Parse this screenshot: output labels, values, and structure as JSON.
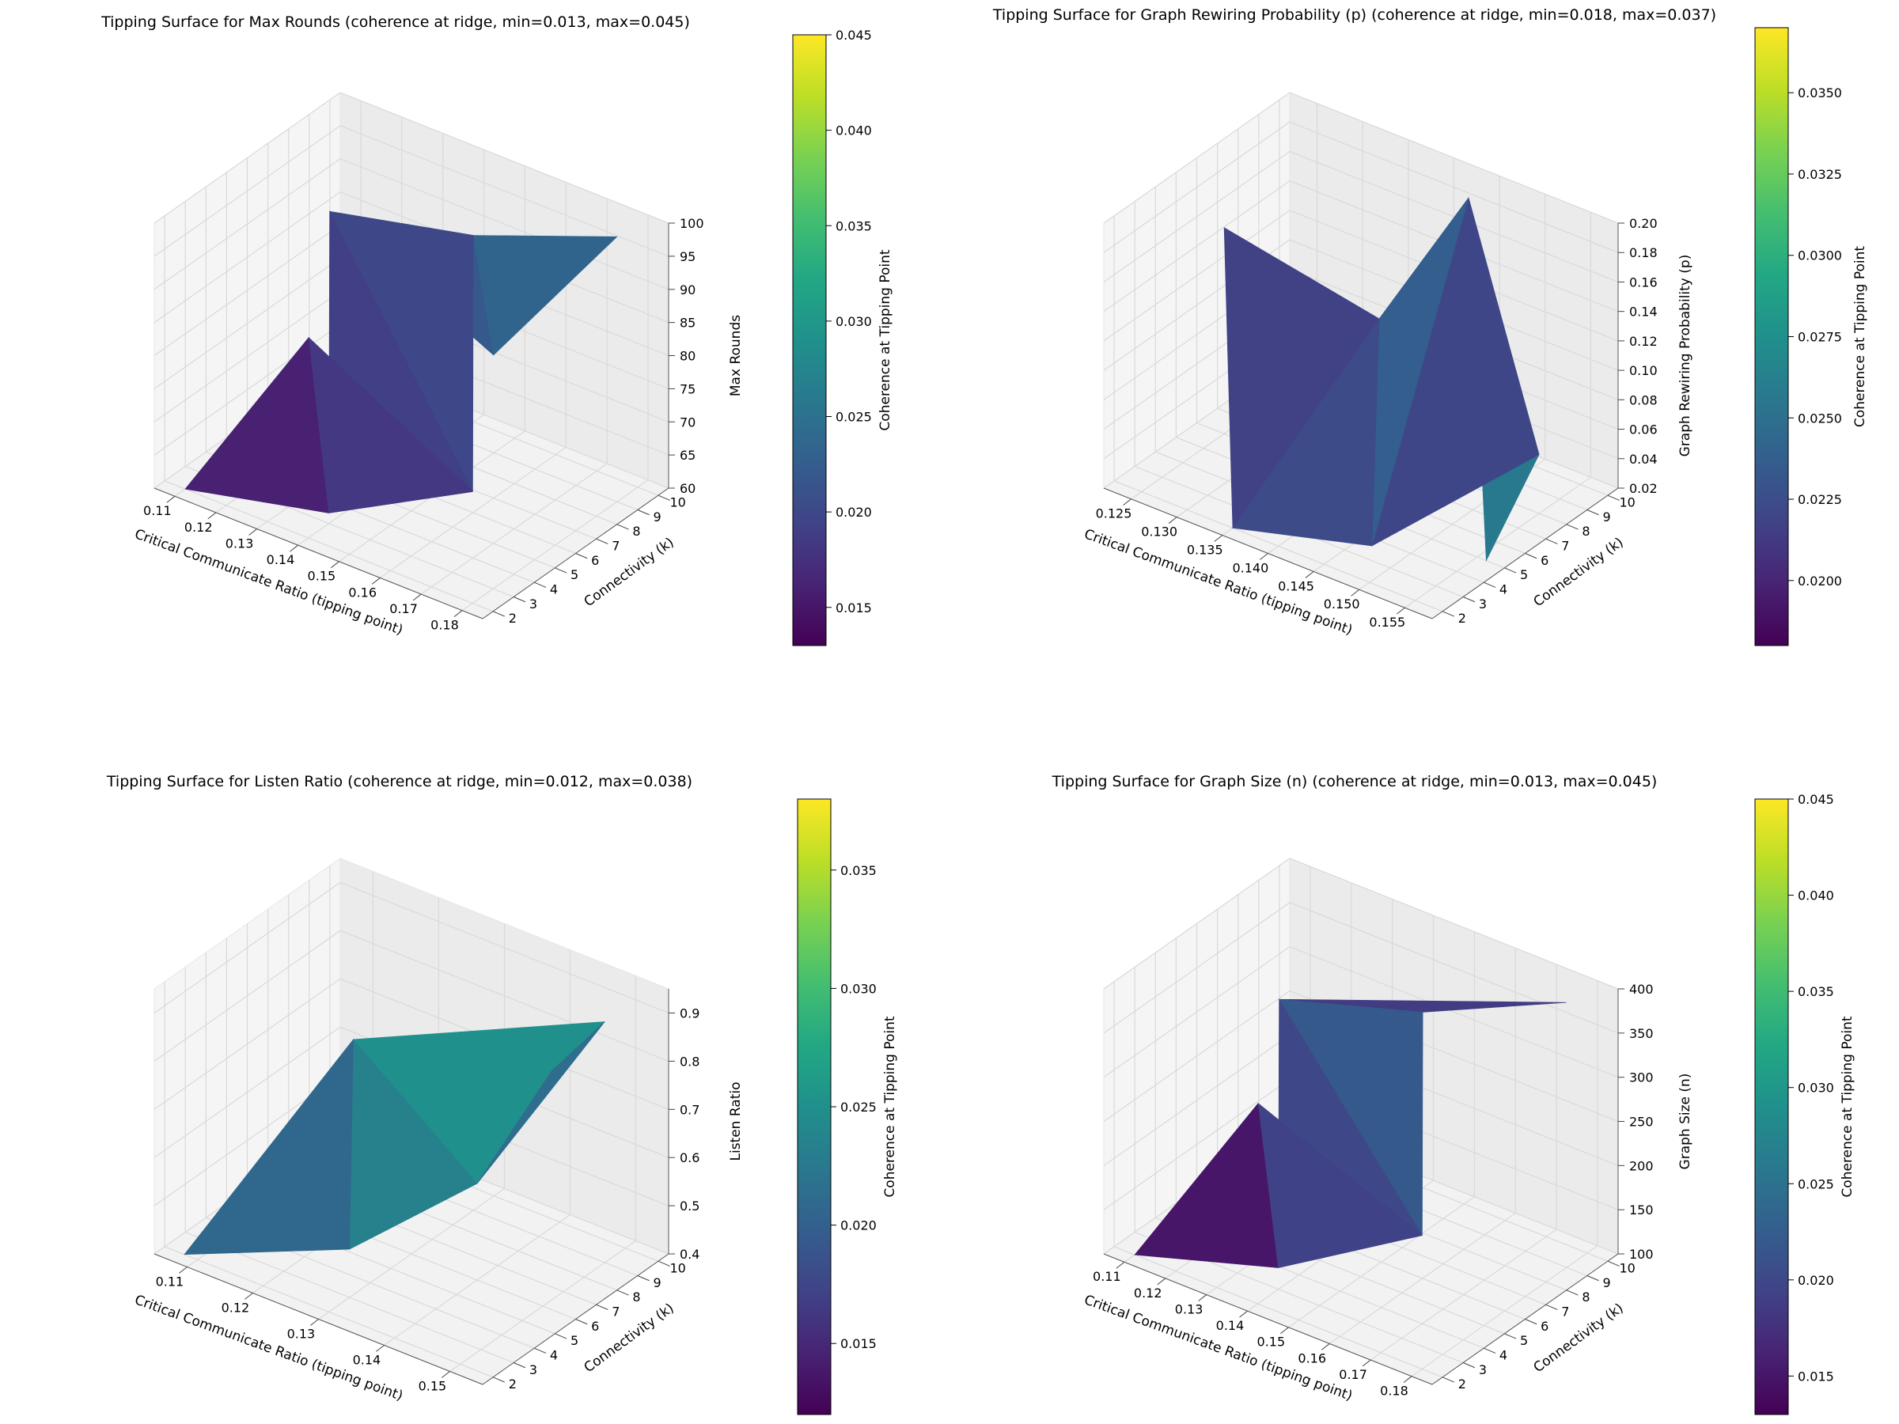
{
  "chart_data": [
    {
      "type": "surface3d",
      "title": "Tipping Surface for Max Rounds (coherence at ridge, min=0.013, max=0.045)",
      "xlabel": "Critical Communicate Ratio (tipping point)",
      "ylabel": "Connectivity (k)",
      "zlabel": "Max Rounds",
      "colorbar_label": "Coherence at Tipping Point",
      "xlim": [
        0.105,
        0.185
      ],
      "ylim": [
        1.5,
        10.5
      ],
      "zlim": [
        60,
        100
      ],
      "x_ticks": [
        "0.11",
        "0.12",
        "0.13",
        "0.14",
        "0.15",
        "0.16",
        "0.17",
        "0.18"
      ],
      "y_ticks": [
        "2",
        "3",
        "4",
        "5",
        "6",
        "7",
        "8",
        "9",
        "10"
      ],
      "z_ticks": [
        "60",
        "65",
        "70",
        "75",
        "80",
        "85",
        "90",
        "95",
        "100"
      ],
      "color_ticks": [
        "0.015",
        "0.020",
        "0.025",
        "0.030",
        "0.035",
        "0.040",
        "0.045"
      ],
      "color_range": [
        0.013,
        0.045
      ],
      "points": [
        {
          "x": 0.11,
          "k": 2,
          "z": 60,
          "c": 0.017
        },
        {
          "x": 0.125,
          "k": 5,
          "z": 80,
          "c": 0.014
        },
        {
          "x": 0.145,
          "k": 2,
          "z": 65,
          "c": 0.017
        },
        {
          "x": 0.17,
          "k": 4,
          "z": 70,
          "c": 0.024
        },
        {
          "x": 0.115,
          "k": 8,
          "z": 90,
          "c": 0.016
        },
        {
          "x": 0.15,
          "k": 8,
          "z": 95,
          "c": 0.02
        },
        {
          "x": 0.165,
          "k": 6,
          "z": 85,
          "c": 0.03
        },
        {
          "x": 0.18,
          "k": 9,
          "z": 100,
          "c": 0.02
        }
      ]
    },
    {
      "type": "surface3d",
      "title": "Tipping Surface for Graph Rewiring Probability (p) (coherence at ridge, min=0.018, max=0.037)",
      "xlabel": "Critical Communicate Ratio (tipping point)",
      "ylabel": "Connectivity (k)",
      "zlabel": "Graph Rewiring Probability (p)",
      "colorbar_label": "Coherence at Tipping Point",
      "xlim": [
        0.122,
        0.158
      ],
      "ylim": [
        1.5,
        10.5
      ],
      "zlim": [
        0.02,
        0.2
      ],
      "x_ticks": [
        "0.125",
        "0.130",
        "0.135",
        "0.140",
        "0.145",
        "0.150",
        "0.155"
      ],
      "y_ticks": [
        "2",
        "3",
        "4",
        "5",
        "6",
        "7",
        "8",
        "9",
        "10"
      ],
      "z_ticks": [
        "0.02",
        "0.04",
        "0.06",
        "0.08",
        "0.10",
        "0.12",
        "0.14",
        "0.16",
        "0.18",
        "0.20"
      ],
      "color_ticks": [
        "0.0200",
        "0.0225",
        "0.0250",
        "0.0275",
        "0.0300",
        "0.0325",
        "0.0350"
      ],
      "color_range": [
        0.018,
        0.037
      ],
      "points": [
        {
          "x": 0.125,
          "k": 6,
          "z": 0.16,
          "c": 0.018
        },
        {
          "x": 0.135,
          "k": 2,
          "z": 0.02,
          "c": 0.022
        },
        {
          "x": 0.142,
          "k": 6,
          "z": 0.14,
          "c": 0.025
        },
        {
          "x": 0.148,
          "k": 3,
          "z": 0.03,
          "c": 0.02
        },
        {
          "x": 0.145,
          "k": 9,
          "z": 0.2,
          "c": 0.026
        },
        {
          "x": 0.155,
          "k": 8,
          "z": 0.06,
          "c": 0.02
        },
        {
          "x": 0.156,
          "k": 5,
          "z": 0.02,
          "c": 0.031
        }
      ]
    },
    {
      "type": "surface3d",
      "title": "Tipping Surface for Listen Ratio (coherence at ridge, min=0.012, max=0.038)",
      "xlabel": "Critical Communicate Ratio (tipping point)",
      "ylabel": "Connectivity (k)",
      "zlabel": "Listen Ratio",
      "colorbar_label": "Coherence at Tipping Point",
      "xlim": [
        0.105,
        0.155
      ],
      "ylim": [
        1.5,
        10.5
      ],
      "zlim": [
        0.4,
        0.95
      ],
      "x_ticks": [
        "0.11",
        "0.12",
        "0.13",
        "0.14",
        "0.15"
      ],
      "y_ticks": [
        "2",
        "3",
        "4",
        "5",
        "6",
        "7",
        "8",
        "9",
        "10"
      ],
      "z_ticks": [
        "0.4",
        "0.5",
        "0.6",
        "0.7",
        "0.8",
        "0.9"
      ],
      "color_ticks": [
        "0.015",
        "0.020",
        "0.025",
        "0.030",
        "0.035"
      ],
      "color_range": [
        0.012,
        0.038
      ],
      "points": [
        {
          "x": 0.108,
          "k": 2,
          "z": 0.4,
          "c": 0.019
        },
        {
          "x": 0.13,
          "k": 3,
          "z": 0.5,
          "c": 0.019
        },
        {
          "x": 0.118,
          "k": 7,
          "z": 0.75,
          "c": 0.024
        },
        {
          "x": 0.14,
          "k": 6,
          "z": 0.6,
          "c": 0.027
        },
        {
          "x": 0.15,
          "k": 9,
          "z": 0.9,
          "c": 0.024
        },
        {
          "x": 0.145,
          "k": 8,
          "z": 0.8,
          "c": 0.013
        },
        {
          "x": 0.135,
          "k": 7,
          "z": 0.7,
          "c": 0.033
        }
      ]
    },
    {
      "type": "surface3d",
      "title": "Tipping Surface for Graph Size (n) (coherence at ridge, min=0.013, max=0.045)",
      "xlabel": "Critical Communicate Ratio (tipping point)",
      "ylabel": "Connectivity (k)",
      "zlabel": "Graph Size (n)",
      "colorbar_label": "Coherence at Tipping Point",
      "xlim": [
        0.105,
        0.185
      ],
      "ylim": [
        1.5,
        10.5
      ],
      "zlim": [
        100,
        400
      ],
      "x_ticks": [
        "0.11",
        "0.12",
        "0.13",
        "0.14",
        "0.15",
        "0.16",
        "0.17",
        "0.18"
      ],
      "y_ticks": [
        "2",
        "3",
        "4",
        "5",
        "6",
        "7",
        "8",
        "9",
        "10"
      ],
      "z_ticks": [
        "100",
        "150",
        "200",
        "250",
        "300",
        "350",
        "400"
      ],
      "color_ticks": [
        "0.015",
        "0.020",
        "0.025",
        "0.030",
        "0.035",
        "0.040",
        "0.045"
      ],
      "color_range": [
        0.013,
        0.045
      ],
      "points": [
        {
          "x": 0.11,
          "k": 2,
          "z": 100,
          "c": 0.017
        },
        {
          "x": 0.125,
          "k": 5,
          "z": 250,
          "c": 0.014
        },
        {
          "x": 0.145,
          "k": 2,
          "z": 150,
          "c": 0.014
        },
        {
          "x": 0.17,
          "k": 4,
          "z": 200,
          "c": 0.03
        },
        {
          "x": 0.115,
          "k": 8,
          "z": 300,
          "c": 0.016
        },
        {
          "x": 0.15,
          "k": 8,
          "z": 350,
          "c": 0.02
        },
        {
          "x": 0.18,
          "k": 9,
          "z": 400,
          "c": 0.02
        }
      ]
    }
  ]
}
